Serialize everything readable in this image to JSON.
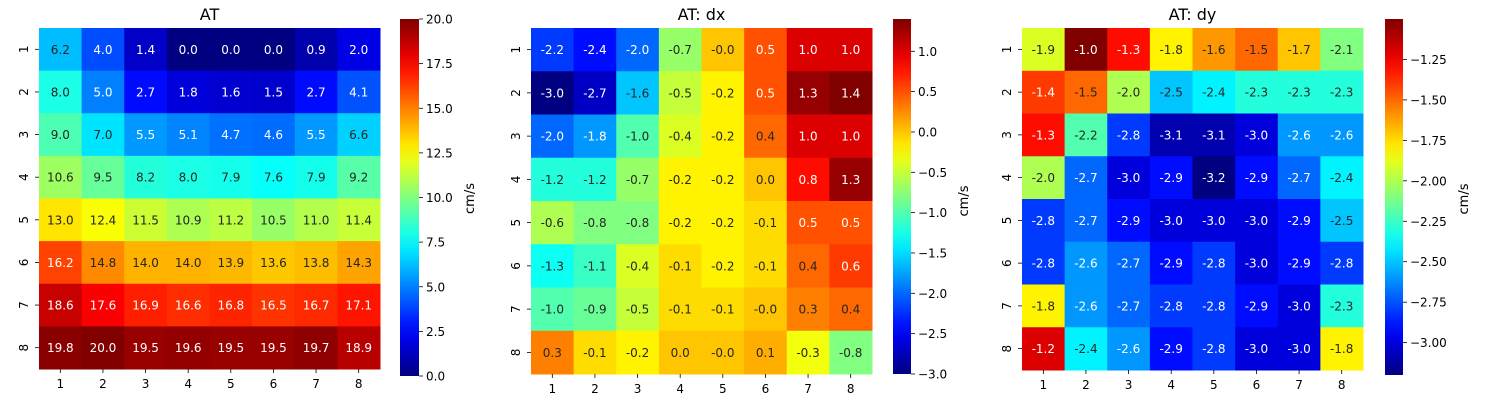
{
  "chart_data": [
    {
      "type": "heatmap",
      "title": "AT",
      "colorbar_label": "cm/s",
      "colormap": "jet",
      "x": [
        "1",
        "2",
        "3",
        "4",
        "5",
        "6",
        "7",
        "8"
      ],
      "y": [
        "1",
        "2",
        "3",
        "4",
        "5",
        "6",
        "7",
        "8"
      ],
      "vmin": 0.0,
      "vmax": 20.0,
      "colorbar_ticks": [
        "0.0",
        "2.5",
        "5.0",
        "7.5",
        "10.0",
        "12.5",
        "15.0",
        "17.5",
        "20.0"
      ],
      "values": [
        [
          6.2,
          4.0,
          1.4,
          0.0,
          0.0,
          0.0,
          0.9,
          2.0
        ],
        [
          8.0,
          5.0,
          2.7,
          1.8,
          1.6,
          1.5,
          2.7,
          4.1
        ],
        [
          9.0,
          7.0,
          5.5,
          5.1,
          4.7,
          4.6,
          5.5,
          6.6
        ],
        [
          10.6,
          9.5,
          8.2,
          8.0,
          7.9,
          7.6,
          7.9,
          9.2
        ],
        [
          13.0,
          12.4,
          11.5,
          10.9,
          11.2,
          10.5,
          11.0,
          11.4
        ],
        [
          16.2,
          14.8,
          14.0,
          14.0,
          13.9,
          13.6,
          13.8,
          14.3
        ],
        [
          18.6,
          17.6,
          16.9,
          16.6,
          16.8,
          16.5,
          16.7,
          17.1
        ],
        [
          19.8,
          20.0,
          19.5,
          19.6,
          19.5,
          19.5,
          19.7,
          18.9
        ]
      ]
    },
    {
      "type": "heatmap",
      "title": "AT: dx",
      "colorbar_label": "cm/s",
      "colormap": "jet",
      "x": [
        "1",
        "2",
        "3",
        "4",
        "5",
        "6",
        "7",
        "8"
      ],
      "y": [
        "1",
        "2",
        "3",
        "4",
        "5",
        "6",
        "7",
        "8"
      ],
      "vmin": -3.0,
      "vmax": 1.4,
      "colorbar_ticks": [
        "−3.0",
        "−2.5",
        "−2.0",
        "−1.5",
        "−1.0",
        "−0.5",
        "0.0",
        "0.5",
        "1.0"
      ],
      "values": [
        [
          -2.2,
          -2.4,
          -2.0,
          -0.7,
          -0.0,
          0.5,
          1.0,
          1.0
        ],
        [
          -3.0,
          -2.7,
          -1.6,
          -0.5,
          -0.2,
          0.5,
          1.3,
          1.4
        ],
        [
          -2.0,
          -1.8,
          -1.0,
          -0.4,
          -0.2,
          0.4,
          1.0,
          1.0
        ],
        [
          -1.2,
          -1.2,
          -0.7,
          -0.2,
          -0.2,
          0.0,
          0.8,
          1.3
        ],
        [
          -0.6,
          -0.8,
          -0.8,
          -0.2,
          -0.2,
          -0.1,
          0.5,
          0.5
        ],
        [
          -1.3,
          -1.1,
          -0.4,
          -0.1,
          -0.2,
          -0.1,
          0.4,
          0.6
        ],
        [
          -1.0,
          -0.9,
          -0.5,
          -0.1,
          -0.1,
          -0.0,
          0.3,
          0.4
        ],
        [
          0.3,
          -0.1,
          -0.2,
          0.0,
          -0.0,
          0.1,
          -0.3,
          -0.8
        ]
      ]
    },
    {
      "type": "heatmap",
      "title": "AT: dy",
      "colorbar_label": "cm/s",
      "colormap": "jet",
      "x": [
        "1",
        "2",
        "3",
        "4",
        "5",
        "6",
        "7",
        "8"
      ],
      "y": [
        "1",
        "2",
        "3",
        "4",
        "5",
        "6",
        "7",
        "8"
      ],
      "vmin": -3.2,
      "vmax": -1.0,
      "colorbar_ticks": [
        "−3.00",
        "−2.75",
        "−2.50",
        "−2.25",
        "−2.00",
        "−1.75",
        "−1.50",
        "−1.25"
      ],
      "values": [
        [
          -1.9,
          -1.0,
          -1.3,
          -1.8,
          -1.6,
          -1.5,
          -1.7,
          -2.1
        ],
        [
          -1.4,
          -1.5,
          -2.0,
          -2.5,
          -2.4,
          -2.3,
          -2.3,
          -2.3
        ],
        [
          -1.3,
          -2.2,
          -2.8,
          -3.1,
          -3.1,
          -3.0,
          -2.6,
          -2.6
        ],
        [
          -2.0,
          -2.7,
          -3.0,
          -2.9,
          -3.2,
          -2.9,
          -2.7,
          -2.4
        ],
        [
          -2.8,
          -2.7,
          -2.9,
          -3.0,
          -3.0,
          -3.0,
          -2.9,
          -2.5
        ],
        [
          -2.8,
          -2.6,
          -2.7,
          -2.9,
          -2.8,
          -3.0,
          -2.9,
          -2.8
        ],
        [
          -1.8,
          -2.6,
          -2.7,
          -2.8,
          -2.8,
          -2.9,
          -3.0,
          -2.3
        ],
        [
          -1.2,
          -2.4,
          -2.6,
          -2.9,
          -2.8,
          -3.0,
          -3.0,
          -1.8
        ]
      ]
    }
  ]
}
